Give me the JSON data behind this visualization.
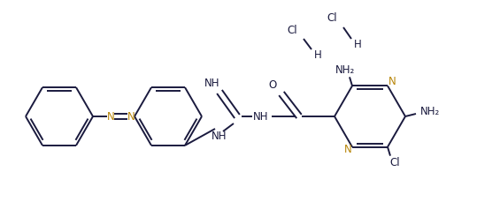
{
  "bg_color": "#ffffff",
  "line_color": "#1a1a3e",
  "N_color": "#b8860a",
  "lw": 1.4,
  "figsize": [
    5.65,
    2.54
  ],
  "dpi": 100,
  "xlim": [
    0,
    565
  ],
  "ylim": [
    0,
    254
  ]
}
